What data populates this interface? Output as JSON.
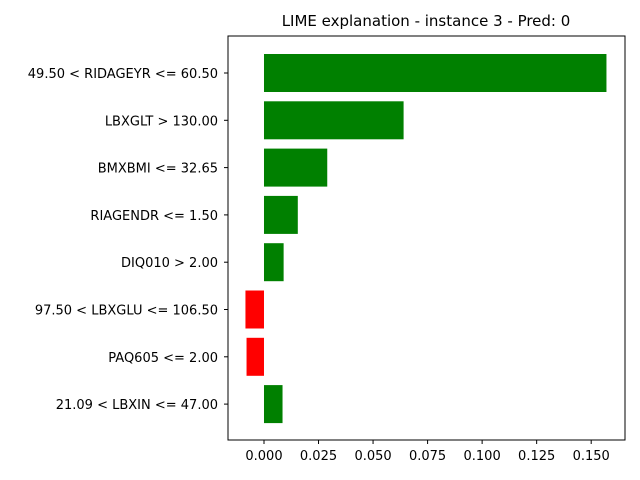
{
  "chart_data": {
    "type": "bar",
    "orientation": "horizontal",
    "title": "LIME explanation - instance 3 - Pred: 0",
    "xlabel": "",
    "ylabel": "",
    "categories": [
      "49.50 < RIDAGEYR <= 60.50",
      "LBXGLT > 130.00",
      "BMXBMI <= 32.65",
      "RIAGENDR <= 1.50",
      "DIQ010 > 2.00",
      "97.50 < LBXGLU <= 106.50",
      "PAQ605 <= 2.00",
      "21.09 < LBXIN <= 47.00"
    ],
    "values": [
      0.157,
      0.064,
      0.029,
      0.0155,
      0.009,
      -0.0085,
      -0.008,
      0.0085
    ],
    "xlim": [
      -0.0165,
      0.1655
    ],
    "xticks": [
      0.0,
      0.025,
      0.05,
      0.075,
      0.1,
      0.125,
      0.15
    ],
    "xtick_labels": [
      "0.000",
      "0.025",
      "0.050",
      "0.075",
      "0.100",
      "0.125",
      "0.150"
    ],
    "grid": false,
    "colors": {
      "positive": "#008000",
      "negative": "#ff0000"
    }
  }
}
